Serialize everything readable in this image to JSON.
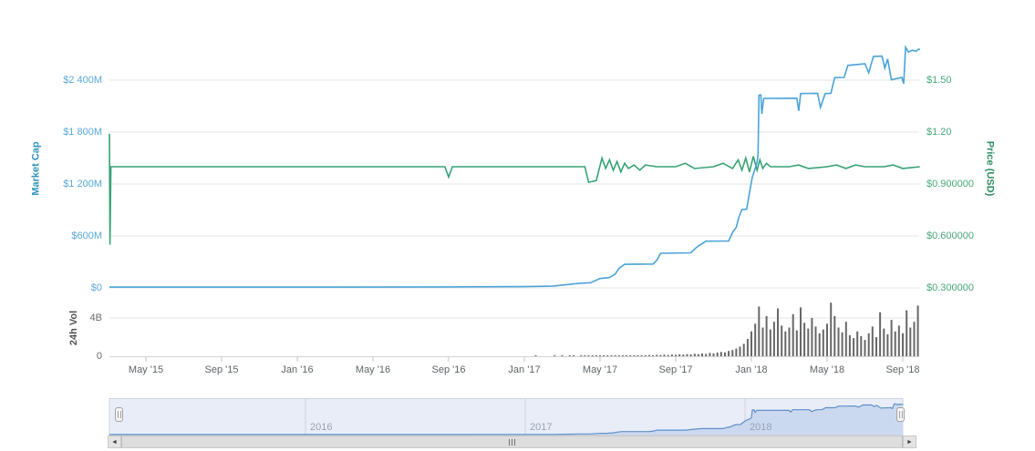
{
  "page": {
    "background": "#ffffff"
  },
  "chart_data": {
    "type": "line",
    "title": "",
    "subtitle": "",
    "legend": "none",
    "grid": "horizontal",
    "x_axis": {
      "tick_labels": [
        "May '15",
        "Sep '15",
        "Jan '16",
        "May '16",
        "Sep '16",
        "Jan '17",
        "May '17",
        "Sep '17",
        "Jan '18",
        "May '18",
        "Sep '18"
      ],
      "tick_months": [
        0,
        4,
        8,
        12,
        16,
        20,
        24,
        28,
        32,
        36,
        40
      ],
      "epoch": "months since May 2015",
      "range_months": [
        -1.93,
        40.9
      ]
    },
    "y_axis_left": {
      "title": "Market Cap",
      "labels": [
        "$2 400M",
        "$1 800M",
        "$1 200M",
        "$600M",
        "$0"
      ],
      "values_musd": [
        2400,
        1800,
        1200,
        600,
        0
      ],
      "title_color": "#2e93b9",
      "label_color": "#58a9d8"
    },
    "y_axis_right": {
      "title": "Price (USD)",
      "labels": [
        "$1.50",
        "$1.20",
        "$0.900000",
        "$0.600000",
        "$0.300000"
      ],
      "values_usd": [
        1.5,
        1.2,
        0.9,
        0.6,
        0.3
      ],
      "title_color": "#2f8f63",
      "label_color": "#4aa57d"
    },
    "volume_axis": {
      "title": "24h Vol",
      "labels": [
        "4B",
        "0"
      ],
      "values_b": [
        4,
        0
      ],
      "title_color": "#4f4f4f",
      "label_color": "#6b6b6b"
    },
    "series": {
      "market_cap": {
        "name": "Market Cap",
        "type": "line",
        "color": "#4aa3d8",
        "unit": "million USD",
        "points": [
          [
            -1.93,
            10
          ],
          [
            10,
            10
          ],
          [
            16,
            12
          ],
          [
            20,
            15
          ],
          [
            21.5,
            20
          ],
          [
            22.5,
            44
          ],
          [
            23.0,
            55
          ],
          [
            23.5,
            60
          ],
          [
            24.0,
            108
          ],
          [
            24.5,
            120
          ],
          [
            24.8,
            160
          ],
          [
            25.0,
            225
          ],
          [
            25.3,
            273
          ],
          [
            26.8,
            276
          ],
          [
            27.0,
            320
          ],
          [
            27.2,
            400
          ],
          [
            28.8,
            405
          ],
          [
            29.0,
            450
          ],
          [
            29.2,
            485
          ],
          [
            29.6,
            540
          ],
          [
            30.8,
            542
          ],
          [
            31.0,
            640
          ],
          [
            31.2,
            700
          ],
          [
            31.35,
            825
          ],
          [
            31.5,
            905
          ],
          [
            31.75,
            910
          ],
          [
            31.9,
            1100
          ],
          [
            32.05,
            1280
          ],
          [
            32.2,
            1380
          ],
          [
            32.3,
            1450
          ],
          [
            32.35,
            1540
          ],
          [
            32.4,
            2225
          ],
          [
            32.5,
            2230
          ],
          [
            32.55,
            2010
          ],
          [
            32.65,
            2190
          ],
          [
            34.4,
            2192
          ],
          [
            34.5,
            2045
          ],
          [
            34.6,
            2245
          ],
          [
            35.5,
            2248
          ],
          [
            35.65,
            2085
          ],
          [
            35.9,
            2245
          ],
          [
            36.2,
            2248
          ],
          [
            36.4,
            2430
          ],
          [
            36.9,
            2432
          ],
          [
            37.1,
            2570
          ],
          [
            38.0,
            2590
          ],
          [
            38.2,
            2485
          ],
          [
            38.45,
            2675
          ],
          [
            38.9,
            2678
          ],
          [
            39.05,
            2540
          ],
          [
            39.2,
            2645
          ],
          [
            39.4,
            2405
          ],
          [
            39.95,
            2432
          ],
          [
            40.05,
            2360
          ],
          [
            40.15,
            2780
          ],
          [
            40.3,
            2725
          ],
          [
            40.5,
            2745
          ],
          [
            40.7,
            2735
          ],
          [
            40.85,
            2760
          ],
          [
            40.9,
            2750
          ]
        ]
      },
      "price": {
        "name": "Price (USD)",
        "type": "line",
        "color": "#36a275",
        "unit": "USD",
        "points": [
          [
            -1.93,
            1.19
          ],
          [
            -1.9,
            0.55
          ],
          [
            -1.85,
            1.0
          ],
          [
            0,
            1.0
          ],
          [
            4,
            1.0
          ],
          [
            8,
            1.0
          ],
          [
            12,
            1.0
          ],
          [
            15.8,
            1.0
          ],
          [
            16,
            0.94
          ],
          [
            16.2,
            1.0
          ],
          [
            20,
            1.0
          ],
          [
            23.2,
            1.0
          ],
          [
            23.4,
            0.91
          ],
          [
            23.8,
            0.92
          ],
          [
            24.1,
            1.05
          ],
          [
            24.3,
            0.99
          ],
          [
            24.5,
            1.04
          ],
          [
            24.7,
            0.98
          ],
          [
            24.9,
            1.03
          ],
          [
            25.1,
            0.97
          ],
          [
            25.3,
            1.02
          ],
          [
            25.5,
            0.99
          ],
          [
            25.8,
            1.01
          ],
          [
            26.1,
            0.98
          ],
          [
            26.4,
            1.01
          ],
          [
            27,
            1.0
          ],
          [
            28,
            1.0
          ],
          [
            28.5,
            1.02
          ],
          [
            29,
            0.99
          ],
          [
            30,
            1.0
          ],
          [
            30.5,
            1.02
          ],
          [
            31,
            0.99
          ],
          [
            31.3,
            1.04
          ],
          [
            31.5,
            0.98
          ],
          [
            31.7,
            1.05
          ],
          [
            31.9,
            0.97
          ],
          [
            32.1,
            1.06
          ],
          [
            32.3,
            0.98
          ],
          [
            32.45,
            1.04
          ],
          [
            32.6,
            0.99
          ],
          [
            32.8,
            1.02
          ],
          [
            33,
            1.0
          ],
          [
            34,
            1.0
          ],
          [
            34.5,
            1.01
          ],
          [
            35,
            0.99
          ],
          [
            36,
            1.0
          ],
          [
            36.5,
            1.01
          ],
          [
            37,
            0.99
          ],
          [
            37.5,
            1.01
          ],
          [
            38,
            1.0
          ],
          [
            39,
            1.0
          ],
          [
            39.5,
            1.01
          ],
          [
            40,
            0.99
          ],
          [
            40.9,
            1.0
          ]
        ]
      },
      "volume": {
        "name": "24h Vol",
        "type": "bar",
        "color": "#565656",
        "unit": "billion USD",
        "t_start": 20,
        "t_step": 0.2,
        "values": [
          0.02,
          0.01,
          0.02,
          0.03,
          0.02,
          0.01,
          0.02,
          0.02,
          0.03,
          0.02,
          0.03,
          0.02,
          0.04,
          0.03,
          0.02,
          0.03,
          0.05,
          0.04,
          0.03,
          0.04,
          0.06,
          0.05,
          0.08,
          0.06,
          0.05,
          0.07,
          0.06,
          0.09,
          0.07,
          0.06,
          0.08,
          0.1,
          0.09,
          0.12,
          0.1,
          0.14,
          0.12,
          0.16,
          0.13,
          0.18,
          0.15,
          0.2,
          0.17,
          0.22,
          0.19,
          0.26,
          0.22,
          0.3,
          0.25,
          0.34,
          0.3,
          0.38,
          0.45,
          0.4,
          0.55,
          0.65,
          0.8,
          1.0,
          1.3,
          1.8,
          2.6,
          3.4,
          5.2,
          3.0,
          4.2,
          2.8,
          3.6,
          5.0,
          3.2,
          2.6,
          3.0,
          4.4,
          2.7,
          5.1,
          3.5,
          2.9,
          4.0,
          3.1,
          2.4,
          2.8,
          3.4,
          5.6,
          4.2,
          3.0,
          2.5,
          3.6,
          2.2,
          1.9,
          2.6,
          2.1,
          1.7,
          2.4,
          3.1,
          2.0,
          4.6,
          2.9,
          2.3,
          3.8,
          2.6,
          3.2,
          2.4,
          4.8,
          3.0,
          3.6,
          5.3
        ]
      }
    },
    "navigator": {
      "year_labels": [
        "2016",
        "2017",
        "2018"
      ],
      "year_months": [
        8,
        20,
        32
      ],
      "bg_color": "#e9edf8",
      "area_color": "#cbd9f0",
      "line_color": "#5f8fc7",
      "label_color": "#99a1b5"
    },
    "scrollbar": {
      "left_arrow": "◄",
      "right_arrow": "►"
    },
    "colors": {
      "gridline": "#e6e6e6",
      "axisline": "#d4d4d4",
      "tick": "#c6c6c6"
    }
  }
}
